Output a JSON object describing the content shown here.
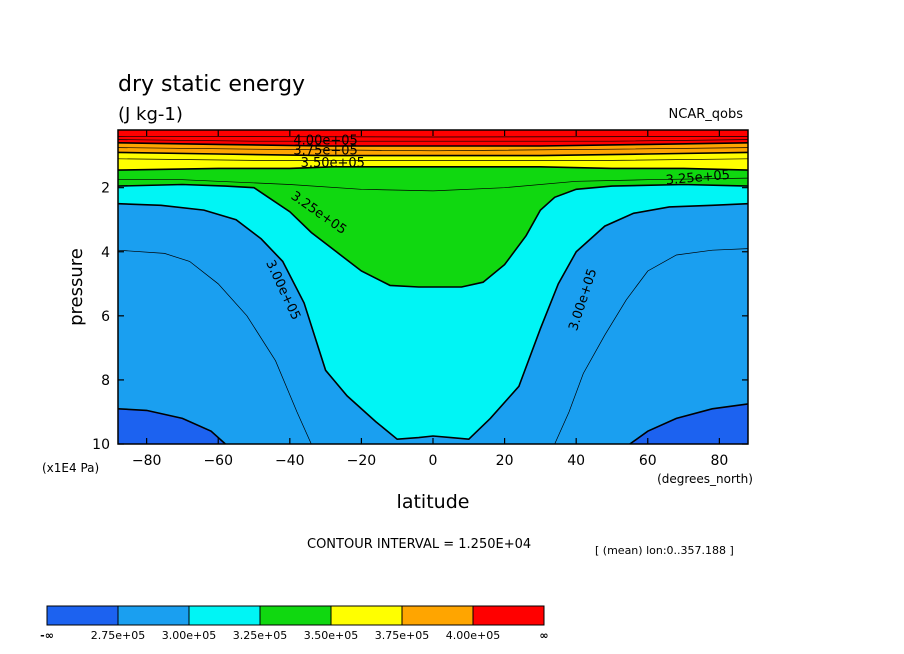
{
  "chart_data": {
    "type": "contour",
    "title": "dry static energy",
    "units": "(J kg-1)",
    "dataset": "NCAR_qobs",
    "xlabel": "latitude",
    "xunits": "(degrees_north)",
    "ylabel": "pressure",
    "yunits": "(x1E4 Pa)",
    "xlim": [
      -88,
      88
    ],
    "ylim": [
      0.2,
      10
    ],
    "y_inverted": true,
    "x_ticks": [
      -80,
      -60,
      -40,
      -20,
      0,
      20,
      40,
      60,
      80
    ],
    "y_ticks": [
      2,
      4,
      6,
      8,
      10
    ],
    "contour_interval_text": "CONTOUR INTERVAL = 1.250E+04",
    "averaging_text": "[ (mean) lon:0..357.188 ]",
    "contour_labels": [
      {
        "text": "4.00e+05",
        "lat": -30,
        "p": 0.55
      },
      {
        "text": "3.75e+05",
        "lat": -30,
        "p": 0.85
      },
      {
        "text": "3.50e+05",
        "lat": -28,
        "p": 1.25
      },
      {
        "text": "3.25e+05",
        "lat": 74,
        "p": 1.7
      },
      {
        "text": "3.25e+05",
        "lat": -32,
        "p": 2.8
      },
      {
        "text": "3.00e+05",
        "lat": -42,
        "p": 5.2
      },
      {
        "text": "3.00e+05",
        "lat": 42,
        "p": 5.5
      }
    ],
    "levels": [
      {
        "name": "2.75e+05",
        "color": "#1c62f0",
        "boundary": [
          [
            -88,
            8.9
          ],
          [
            -80,
            8.95
          ],
          [
            -70,
            9.2
          ],
          [
            -62,
            9.6
          ],
          [
            -58,
            10
          ]
        ],
        "boundary_north": [
          [
            55,
            10
          ],
          [
            60,
            9.6
          ],
          [
            68,
            9.2
          ],
          [
            78,
            8.9
          ],
          [
            88,
            8.75
          ]
        ]
      },
      {
        "name": "3.00e+05",
        "color": "#1a9ff0",
        "boundary": [
          [
            -88,
            2.5
          ],
          [
            -76,
            2.55
          ],
          [
            -64,
            2.7
          ],
          [
            -55,
            3.0
          ],
          [
            -48,
            3.6
          ],
          [
            -42,
            4.3
          ],
          [
            -36,
            5.6
          ],
          [
            -30,
            7.7
          ],
          [
            -24,
            8.5
          ],
          [
            -16,
            9.3
          ],
          [
            -10,
            9.85
          ],
          [
            -4,
            9.8
          ],
          [
            0,
            9.75
          ],
          [
            5,
            9.8
          ],
          [
            10,
            9.85
          ],
          [
            16,
            9.2
          ],
          [
            24,
            8.2
          ],
          [
            30,
            6.4
          ],
          [
            35,
            5.0
          ],
          [
            40,
            4.0
          ],
          [
            48,
            3.2
          ],
          [
            56,
            2.8
          ],
          [
            66,
            2.6
          ],
          [
            78,
            2.55
          ],
          [
            88,
            2.5
          ]
        ]
      },
      {
        "name": "3.25e+05",
        "color": "#00f5f5",
        "boundary": [
          [
            -88,
            1.95
          ],
          [
            -70,
            1.9
          ],
          [
            -58,
            1.95
          ],
          [
            -50,
            2.0
          ],
          [
            -46,
            2.3
          ],
          [
            -40,
            2.75
          ],
          [
            -34,
            3.4
          ],
          [
            -27,
            4.0
          ],
          [
            -20,
            4.6
          ],
          [
            -12,
            5.05
          ],
          [
            -4,
            5.1
          ],
          [
            0,
            5.1
          ],
          [
            8,
            5.1
          ],
          [
            14,
            4.95
          ],
          [
            20,
            4.4
          ],
          [
            26,
            3.5
          ],
          [
            30,
            2.7
          ],
          [
            34,
            2.3
          ],
          [
            40,
            2.05
          ],
          [
            50,
            1.95
          ],
          [
            70,
            1.9
          ],
          [
            88,
            1.95
          ]
        ]
      },
      {
        "name": "3.50e+05",
        "color": "#10d810",
        "boundary": [
          [
            -88,
            1.45
          ],
          [
            -60,
            1.4
          ],
          [
            -40,
            1.4
          ],
          [
            -28,
            1.35
          ],
          [
            -15,
            1.35
          ],
          [
            0,
            1.35
          ],
          [
            15,
            1.35
          ],
          [
            30,
            1.35
          ],
          [
            50,
            1.4
          ],
          [
            70,
            1.4
          ],
          [
            88,
            1.45
          ]
        ]
      },
      {
        "name": "3.75e+05",
        "color": "#ffff00",
        "boundary": [
          [
            -88,
            0.9
          ],
          [
            -60,
            0.95
          ],
          [
            -30,
            1.0
          ],
          [
            0,
            1.0
          ],
          [
            30,
            1.0
          ],
          [
            60,
            0.95
          ],
          [
            88,
            0.9
          ]
        ]
      },
      {
        "name": "4.00e+05",
        "color": "#ffa500",
        "boundary": [
          [
            -88,
            0.6
          ],
          [
            -60,
            0.65
          ],
          [
            -30,
            0.7
          ],
          [
            0,
            0.7
          ],
          [
            30,
            0.7
          ],
          [
            60,
            0.65
          ],
          [
            88,
            0.6
          ]
        ]
      },
      {
        "name": "",
        "color": "#ff0000",
        "boundary": [
          [
            -88,
            0.2
          ],
          [
            88,
            0.2
          ]
        ]
      }
    ],
    "thin_lines": [
      [
        [
          -88,
          1.75
        ],
        [
          -70,
          1.75
        ],
        [
          -60,
          1.8
        ],
        [
          -40,
          1.9
        ],
        [
          -20,
          2.05
        ],
        [
          0,
          2.1
        ],
        [
          20,
          2.0
        ],
        [
          40,
          1.8
        ],
        [
          60,
          1.75
        ],
        [
          88,
          1.7
        ]
      ],
      [
        [
          -88,
          3.95
        ],
        [
          -75,
          4.05
        ],
        [
          -68,
          4.3
        ],
        [
          -60,
          5.0
        ],
        [
          -52,
          6.0
        ],
        [
          -44,
          7.4
        ],
        [
          -38,
          9.0
        ],
        [
          -34,
          10
        ]
      ],
      [
        [
          34,
          10
        ],
        [
          38,
          9.0
        ],
        [
          42,
          7.8
        ],
        [
          48,
          6.6
        ],
        [
          54,
          5.5
        ],
        [
          60,
          4.6
        ],
        [
          68,
          4.1
        ],
        [
          78,
          3.95
        ],
        [
          88,
          3.9
        ]
      ],
      [
        [
          -88,
          1.1
        ],
        [
          -50,
          1.15
        ],
        [
          0,
          1.15
        ],
        [
          50,
          1.15
        ],
        [
          88,
          1.1
        ]
      ],
      [
        [
          -88,
          0.75
        ],
        [
          -50,
          0.8
        ],
        [
          0,
          0.85
        ],
        [
          50,
          0.8
        ],
        [
          88,
          0.75
        ]
      ],
      [
        [
          -88,
          0.5
        ],
        [
          -50,
          0.55
        ],
        [
          0,
          0.55
        ],
        [
          50,
          0.55
        ],
        [
          88,
          0.5
        ]
      ],
      [
        [
          -88,
          0.4
        ],
        [
          0,
          0.42
        ],
        [
          88,
          0.4
        ]
      ]
    ],
    "colorbar": {
      "ends": [
        "-∞",
        "∞"
      ],
      "labels": [
        "2.75e+05",
        "3.00e+05",
        "3.25e+05",
        "3.50e+05",
        "3.75e+05",
        "4.00e+05"
      ],
      "colors": [
        "#1c62f0",
        "#1a9ff0",
        "#00f5f5",
        "#10d810",
        "#ffff00",
        "#ffa500",
        "#ff0000"
      ]
    }
  }
}
